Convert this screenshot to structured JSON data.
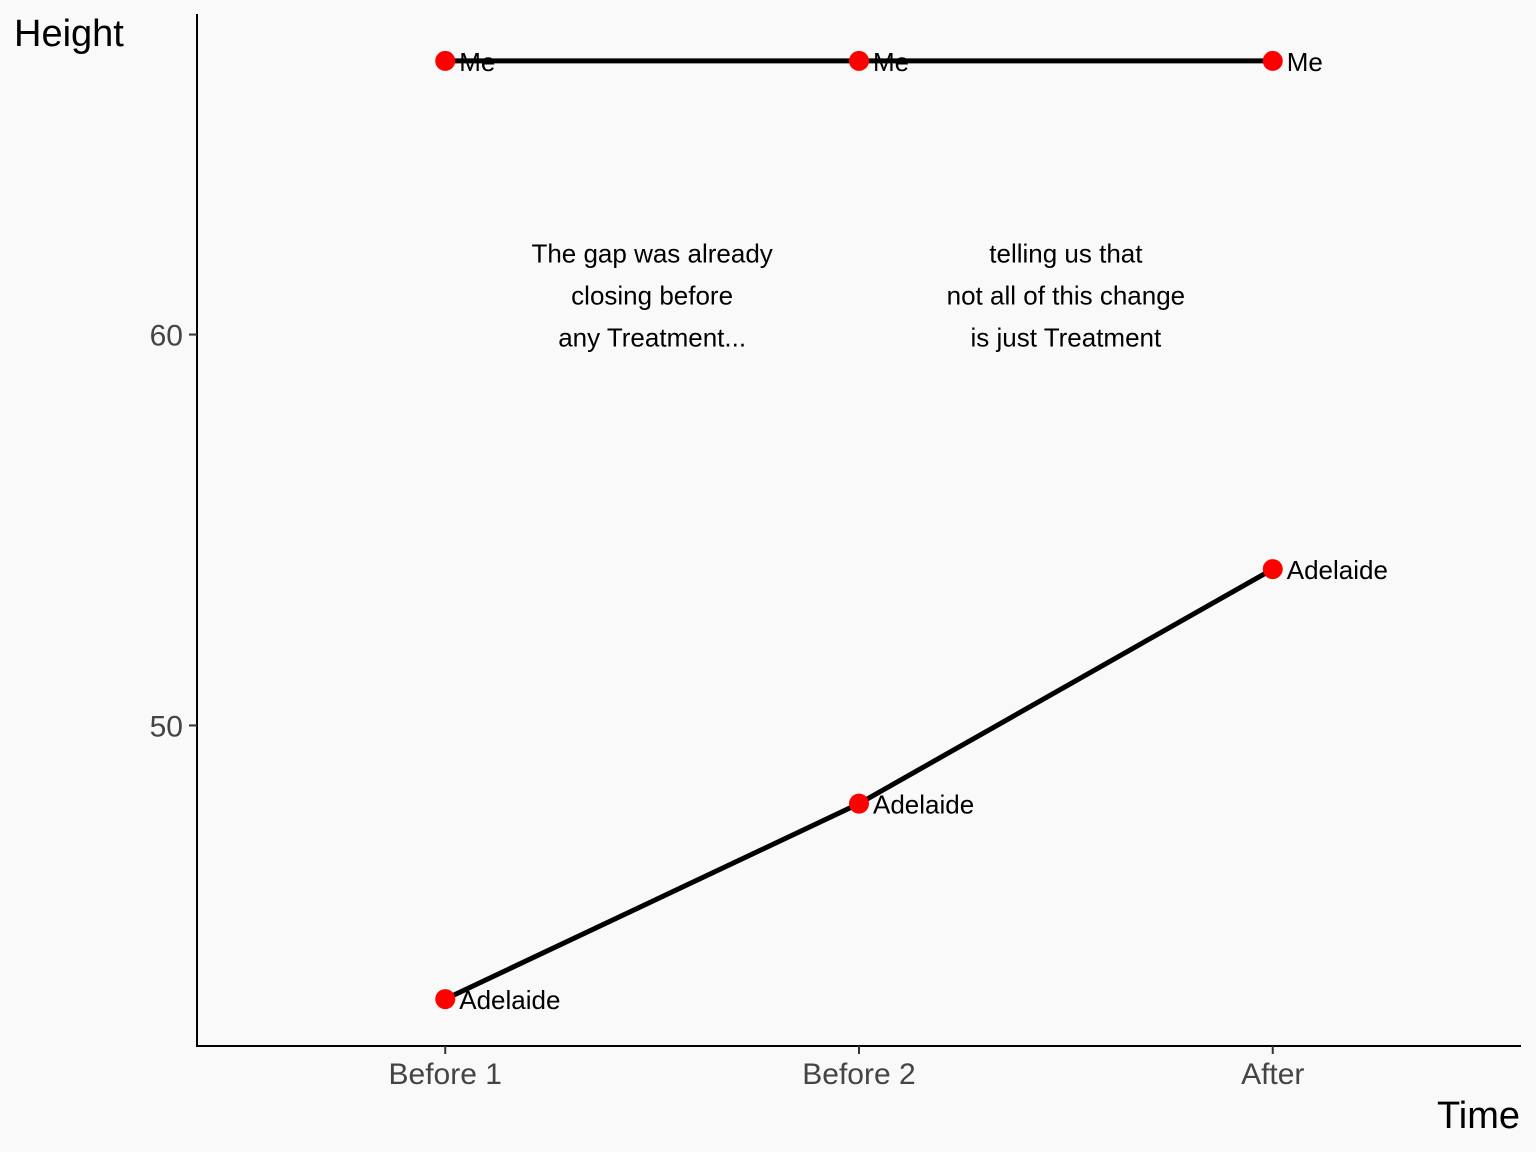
{
  "chart_data": {
    "type": "line",
    "xlabel": "Time",
    "ylabel": "Height",
    "categories": [
      "Before 1",
      "Before 2",
      "After"
    ],
    "y_ticks": [
      50,
      60
    ],
    "ylim": [
      41.8,
      68.2
    ],
    "grid": false,
    "legend": "none",
    "colors": {
      "point": "#ff0000",
      "line": "#000000",
      "background": "#f9f9f9"
    },
    "series": [
      {
        "label": "Me",
        "values": [
          67,
          67,
          67
        ]
      },
      {
        "label": "Adelaide",
        "values": [
          43,
          48,
          54
        ]
      }
    ],
    "annotations": [
      {
        "lines": [
          "The gap was already",
          "closing before",
          "any Treatment..."
        ],
        "x": 1.5,
        "y": 61
      },
      {
        "lines": [
          "telling us that",
          "not all of this change",
          "is just Treatment"
        ],
        "x": 2.5,
        "y": 61
      }
    ]
  }
}
